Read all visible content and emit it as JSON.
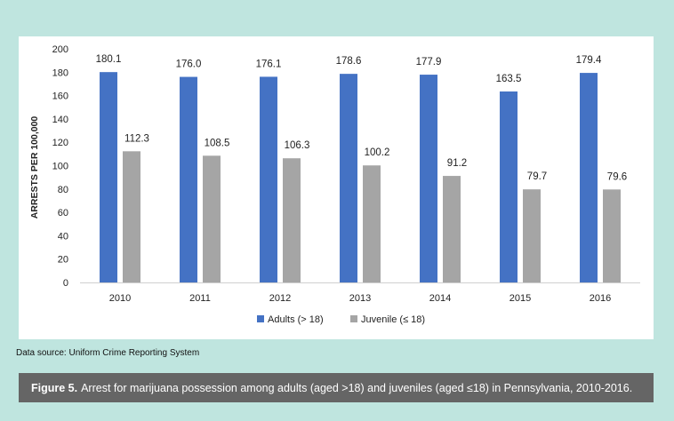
{
  "chart_data": {
    "type": "bar",
    "categories": [
      "2010",
      "2011",
      "2012",
      "2013",
      "2014",
      "2015",
      "2016"
    ],
    "series": [
      {
        "name": "Adults (> 18)",
        "color": "#4472c4",
        "values": [
          180.1,
          176.0,
          176.1,
          178.6,
          177.9,
          163.5,
          179.4
        ]
      },
      {
        "name": "Juvenile (≤ 18)",
        "color": "#a5a5a5",
        "values": [
          112.3,
          108.5,
          106.3,
          100.2,
          91.2,
          79.7,
          79.6
        ]
      }
    ],
    "data_labels": [
      [
        "180.1",
        "176.0",
        "176.1",
        "178.6",
        "177.9",
        "163.5",
        "179.4"
      ],
      [
        "112.3",
        "108.5",
        "106.3",
        "100.2",
        "91.2",
        "79.7",
        "79.6"
      ]
    ],
    "yticks": [
      "0",
      "20",
      "40",
      "60",
      "80",
      "100",
      "120",
      "140",
      "160",
      "180",
      "200"
    ],
    "ylabel": "ARRESTS PER 100,000",
    "xlabel": "",
    "title": "",
    "ylim": [
      0,
      200
    ],
    "grid": false,
    "legend_position": "bottom"
  },
  "source_note": "Data source: Uniform Crime Reporting System",
  "caption": {
    "label": "Figure 5.",
    "text": "Arrest for marijuana possession among adults (aged >18) and juveniles (aged ≤18) in Pennsylvania, 2010-2016."
  }
}
